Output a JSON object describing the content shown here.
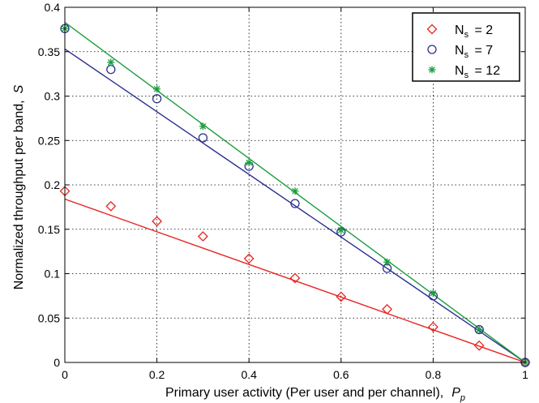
{
  "chart_data": {
    "type": "scatter",
    "title": "",
    "xlabel": "Primary user activity (Per user and per channel),",
    "xlabel_symbol": "P",
    "xlabel_sub": "p",
    "ylabel": "Normalized throughput per band,",
    "ylabel_symbol": "S",
    "xlim": [
      0,
      1
    ],
    "ylim": [
      0,
      0.4
    ],
    "xticks": [
      "0",
      "0.2",
      "0.4",
      "0.6",
      "0.8",
      "1"
    ],
    "xtick_values": [
      0,
      0.2,
      0.4,
      0.6,
      0.8,
      1
    ],
    "yticks": [
      "0",
      "0.05",
      "0.1",
      "0.15",
      "0.2",
      "0.25",
      "0.3",
      "0.35",
      "0.4"
    ],
    "ytick_values": [
      0,
      0.05,
      0.1,
      0.15,
      0.2,
      0.25,
      0.3,
      0.35,
      0.4
    ],
    "grid": true,
    "legend_position": "top-right",
    "x": [
      0,
      0.1,
      0.2,
      0.3,
      0.4,
      0.5,
      0.6,
      0.7,
      0.8,
      0.9,
      1.0
    ],
    "series": [
      {
        "label_main": "N",
        "label_sub": "s",
        "label_value": "=  2",
        "marker": "diamond",
        "color": "#e8231f",
        "values": [
          0.193,
          0.176,
          0.159,
          0.142,
          0.117,
          0.095,
          0.074,
          0.06,
          0.04,
          0.019,
          0.0
        ],
        "fit": [
          0.184,
          0.0
        ]
      },
      {
        "label_main": "N",
        "label_sub": "s",
        "label_value": "=  7",
        "marker": "circle",
        "color": "#2b2f8f",
        "values": [
          0.376,
          0.33,
          0.297,
          0.253,
          0.221,
          0.179,
          0.147,
          0.106,
          0.075,
          0.037,
          0.0
        ],
        "fit": [
          0.353,
          0.0
        ]
      },
      {
        "label_main": "N",
        "label_sub": "s",
        "label_value": "= 12",
        "marker": "asterisk",
        "color": "#1b9e3e",
        "values": [
          0.376,
          0.338,
          0.308,
          0.266,
          0.225,
          0.193,
          0.149,
          0.113,
          0.078,
          0.037,
          0.0
        ],
        "fit": [
          0.383,
          0.0
        ]
      }
    ]
  }
}
